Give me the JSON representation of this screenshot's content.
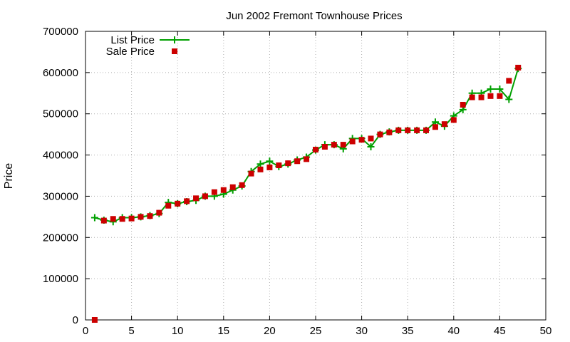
{
  "chart_data": {
    "type": "line",
    "title": "Jun 2002 Fremont Townhouse Prices",
    "xlabel": "",
    "ylabel": "Price",
    "xlim": [
      0,
      50
    ],
    "ylim": [
      0,
      700000
    ],
    "x_ticks": [
      0,
      5,
      10,
      15,
      20,
      25,
      30,
      35,
      40,
      45,
      50
    ],
    "y_ticks": [
      0,
      100000,
      200000,
      300000,
      400000,
      500000,
      600000,
      700000
    ],
    "x_tick_labels": [
      "0",
      "5",
      "10",
      "15",
      "20",
      "25",
      "30",
      "35",
      "40",
      "45",
      "50"
    ],
    "y_tick_labels": [
      "0",
      "100000",
      "200000",
      "300000",
      "400000",
      "500000",
      "600000",
      "700000"
    ],
    "grid": true,
    "legend_position": "top-left",
    "series": [
      {
        "name": "List Price",
        "style": "line-plus",
        "color": "#00a000",
        "x": [
          1,
          2,
          3,
          4,
          5,
          6,
          7,
          8,
          9,
          10,
          11,
          12,
          13,
          14,
          15,
          16,
          17,
          18,
          19,
          20,
          21,
          22,
          23,
          24,
          25,
          26,
          27,
          28,
          29,
          30,
          31,
          32,
          33,
          34,
          35,
          36,
          37,
          38,
          39,
          40,
          41,
          42,
          43,
          44,
          45,
          46,
          47
        ],
        "y": [
          248000,
          242000,
          238000,
          248000,
          248000,
          250000,
          253000,
          258000,
          285000,
          282000,
          287000,
          290000,
          300000,
          300000,
          305000,
          315000,
          325000,
          360000,
          378000,
          385000,
          372000,
          378000,
          388000,
          395000,
          412000,
          425000,
          425000,
          415000,
          440000,
          440000,
          420000,
          450000,
          456000,
          460000,
          460000,
          460000,
          460000,
          480000,
          470000,
          495000,
          510000,
          550000,
          550000,
          560000,
          560000,
          535000,
          610000
        ]
      },
      {
        "name": "Sale Price",
        "style": "squares",
        "color": "#cc0000",
        "x": [
          1,
          2,
          3,
          4,
          5,
          6,
          7,
          8,
          9,
          10,
          11,
          12,
          13,
          14,
          15,
          16,
          17,
          18,
          19,
          20,
          21,
          22,
          23,
          24,
          25,
          26,
          27,
          28,
          29,
          30,
          31,
          32,
          33,
          34,
          35,
          36,
          37,
          38,
          39,
          40,
          41,
          42,
          43,
          44,
          45,
          46,
          47
        ],
        "y": [
          0,
          241000,
          245000,
          245000,
          246000,
          250000,
          252000,
          260000,
          277000,
          282000,
          288000,
          295000,
          300000,
          310000,
          315000,
          322000,
          327000,
          355000,
          365000,
          370000,
          375000,
          380000,
          385000,
          390000,
          413000,
          420000,
          425000,
          425000,
          433000,
          437000,
          440000,
          450000,
          455000,
          460000,
          460000,
          460000,
          460000,
          468000,
          475000,
          485000,
          522000,
          540000,
          540000,
          543000,
          543000,
          580000,
          612000
        ]
      }
    ]
  }
}
